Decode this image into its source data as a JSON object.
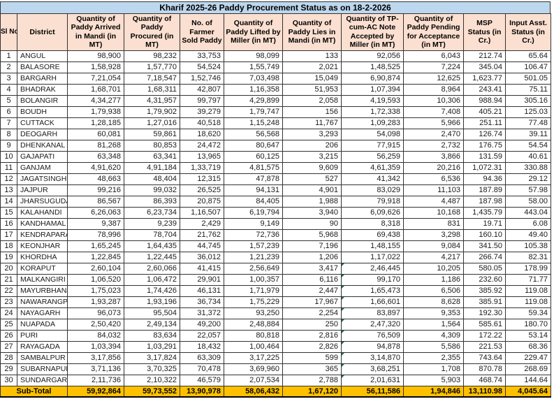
{
  "title": "Kharif 2025-26 Paddy Procurement Status as on 18-2-2026",
  "columns": [
    "Sl No",
    "District",
    "Quantity of Paddy Arrived in Mandi (in MT)",
    "Quantity of Paddy Procured (in MT)",
    "No. of Farmer Sold Paddy",
    "Quantity of Paddy Lifted by Miller (in MT)",
    "Quantity of Paddy Lies in Mandi (in MT)",
    "Quantity of TP-cum-AC Note Accepted by Miller (in MT)",
    "Quantity of Paddy Pending for Acceptance (in MT)",
    "MSP Status (in Cr.)",
    "Input Asst. Status (in Cr.)"
  ],
  "rows": [
    [
      "1",
      "ANGUL",
      "98,900",
      "98,232",
      "33,753",
      "98,099",
      "133",
      "92,056",
      "6,043",
      "212.74",
      "65.64"
    ],
    [
      "2",
      "BALASORE",
      "1,58,928",
      "1,57,770",
      "54,524",
      "1,55,749",
      "2,021",
      "1,48,525",
      "7,224",
      "345.04",
      "106.47"
    ],
    [
      "3",
      "BARGARH",
      "7,21,054",
      "7,18,547",
      "1,52,746",
      "7,03,498",
      "15,049",
      "6,90,874",
      "12,625",
      "1,623.77",
      "501.05"
    ],
    [
      "4",
      "BHADRAK",
      "1,68,701",
      "1,68,311",
      "42,807",
      "1,16,358",
      "51,953",
      "1,07,394",
      "8,964",
      "243.41",
      "75.11"
    ],
    [
      "5",
      "BOLANGIR",
      "4,34,277",
      "4,31,957",
      "99,797",
      "4,29,899",
      "2,058",
      "4,19,593",
      "10,306",
      "988.94",
      "305.16"
    ],
    [
      "6",
      "BOUDH",
      "1,79,938",
      "1,79,902",
      "39,279",
      "1,79,747",
      "156",
      "1,72,338",
      "7,408",
      "405.21",
      "125.03"
    ],
    [
      "7",
      "CUTTACK",
      "1,28,185",
      "1,27,016",
      "40,518",
      "1,15,248",
      "11,767",
      "1,09,283",
      "5,966",
      "251.11",
      "77.48"
    ],
    [
      "8",
      "DEOGARH",
      "60,081",
      "59,861",
      "18,620",
      "56,568",
      "3,293",
      "54,098",
      "2,470",
      "126.74",
      "39.11"
    ],
    [
      "9",
      "DHENKANAL",
      "81,268",
      "80,853",
      "24,472",
      "80,647",
      "206",
      "77,915",
      "2,732",
      "176.75",
      "54.54"
    ],
    [
      "10",
      "GAJAPATI",
      "63,348",
      "63,341",
      "13,965",
      "60,125",
      "3,215",
      "56,259",
      "3,866",
      "131.59",
      "40.61"
    ],
    [
      "11",
      "GANJAM",
      "4,91,620",
      "4,91,184",
      "1,33,719",
      "4,81,575",
      "9,609",
      "4,61,359",
      "20,216",
      "1,072.31",
      "330.88"
    ],
    [
      "12",
      "JAGATSINGHPUR",
      "48,663",
      "48,404",
      "12,315",
      "47,878",
      "527",
      "41,342",
      "6,536",
      "94.36",
      "29.12"
    ],
    [
      "13",
      "JAJPUR",
      "99,216",
      "99,032",
      "26,525",
      "94,131",
      "4,901",
      "83,029",
      "11,103",
      "187.89",
      "57.98"
    ],
    [
      "14",
      "JHARSUGUDA",
      "86,567",
      "86,393",
      "20,875",
      "84,405",
      "1,988",
      "79,918",
      "4,487",
      "187.98",
      "58.00"
    ],
    [
      "15",
      "KALAHANDI",
      "6,26,063",
      "6,23,734",
      "1,16,507",
      "6,19,794",
      "3,940",
      "6,09,626",
      "10,168",
      "1,435.79",
      "443.04"
    ],
    [
      "16",
      "KANDHAMAL",
      "9,387",
      "9,239",
      "2,429",
      "9,149",
      "90",
      "8,318",
      "831",
      "19.71",
      "6.08"
    ],
    [
      "17",
      "KENDRAPARA",
      "78,996",
      "78,704",
      "21,762",
      "72,736",
      "5,968",
      "69,438",
      "3,298",
      "160.10",
      "49.40"
    ],
    [
      "18",
      "KEONJHAR",
      "1,65,245",
      "1,64,435",
      "44,745",
      "1,57,239",
      "7,196",
      "1,48,155",
      "9,084",
      "341.50",
      "105.38"
    ],
    [
      "19",
      "KHORDHA",
      "1,22,845",
      "1,22,445",
      "36,012",
      "1,21,239",
      "1,206",
      "1,17,022",
      "4,217",
      "266.74",
      "82.31"
    ],
    [
      "20",
      "KORAPUT",
      "2,60,104",
      "2,60,066",
      "41,415",
      "2,56,649",
      "3,417",
      "2,46,445",
      "10,205",
      "580.05",
      "178.99"
    ],
    [
      "21",
      "MALKANGIRI",
      "1,06,520",
      "1,06,472",
      "29,901",
      "1,00,357",
      "6,116",
      "99,170",
      "1,186",
      "232.60",
      "71.77"
    ],
    [
      "22",
      "MAYURBHANJ",
      "1,75,023",
      "1,74,426",
      "46,131",
      "1,71,979",
      "2,447",
      "1,65,473",
      "6,506",
      "385.92",
      "119.08"
    ],
    [
      "23",
      "NAWARANGPUR",
      "1,93,287",
      "1,93,196",
      "36,734",
      "1,75,229",
      "17,967",
      "1,66,601",
      "8,628",
      "385.91",
      "119.08"
    ],
    [
      "24",
      "NAYAGARH",
      "96,073",
      "95,504",
      "31,372",
      "93,250",
      "2,254",
      "83,897",
      "9,353",
      "192.30",
      "59.34"
    ],
    [
      "25",
      "NUAPADA",
      "2,50,420",
      "2,49,134",
      "49,200",
      "2,48,884",
      "250",
      "2,47,320",
      "1,564",
      "585.61",
      "180.70"
    ],
    [
      "26",
      "PURI",
      "84,032",
      "83,634",
      "22,057",
      "80,818",
      "2,816",
      "76,509",
      "4,309",
      "172.22",
      "53.14"
    ],
    [
      "27",
      "RAYAGADA",
      "1,03,394",
      "1,03,291",
      "18,432",
      "1,00,464",
      "2,826",
      "94,878",
      "5,586",
      "221.53",
      "68.36"
    ],
    [
      "28",
      "SAMBALPUR",
      "3,17,856",
      "3,17,824",
      "63,309",
      "3,17,225",
      "599",
      "3,14,870",
      "2,355",
      "743.64",
      "229.47"
    ],
    [
      "29",
      "SUBARNAPUR",
      "3,71,136",
      "3,70,325",
      "70,478",
      "3,69,960",
      "365",
      "3,68,251",
      "1,708",
      "870.78",
      "268.69"
    ],
    [
      "30",
      "SUNDARGARH",
      "2,11,736",
      "2,10,322",
      "46,579",
      "2,07,534",
      "2,788",
      "2,01,631",
      "5,903",
      "468.74",
      "144.64"
    ]
  ],
  "subtotal": {
    "label": "Sub-Total",
    "values": [
      "59,92,864",
      "59,73,552",
      "13,90,978",
      "58,06,432",
      "1,67,120",
      "56,11,586",
      "1,94,846",
      "13,110.98",
      "4,045.64"
    ]
  },
  "markers": {
    "green_triangle_column_index": 7,
    "green_triangle_sl": [
      20,
      21,
      22,
      23,
      24,
      25,
      26,
      27,
      28,
      29,
      30
    ]
  },
  "colors": {
    "title_bg": "#BDD7EE",
    "header_bg": "#FBDFD0",
    "subtotal_bg": "#FFC000",
    "border": "#333333",
    "marker_green": "#217346"
  }
}
